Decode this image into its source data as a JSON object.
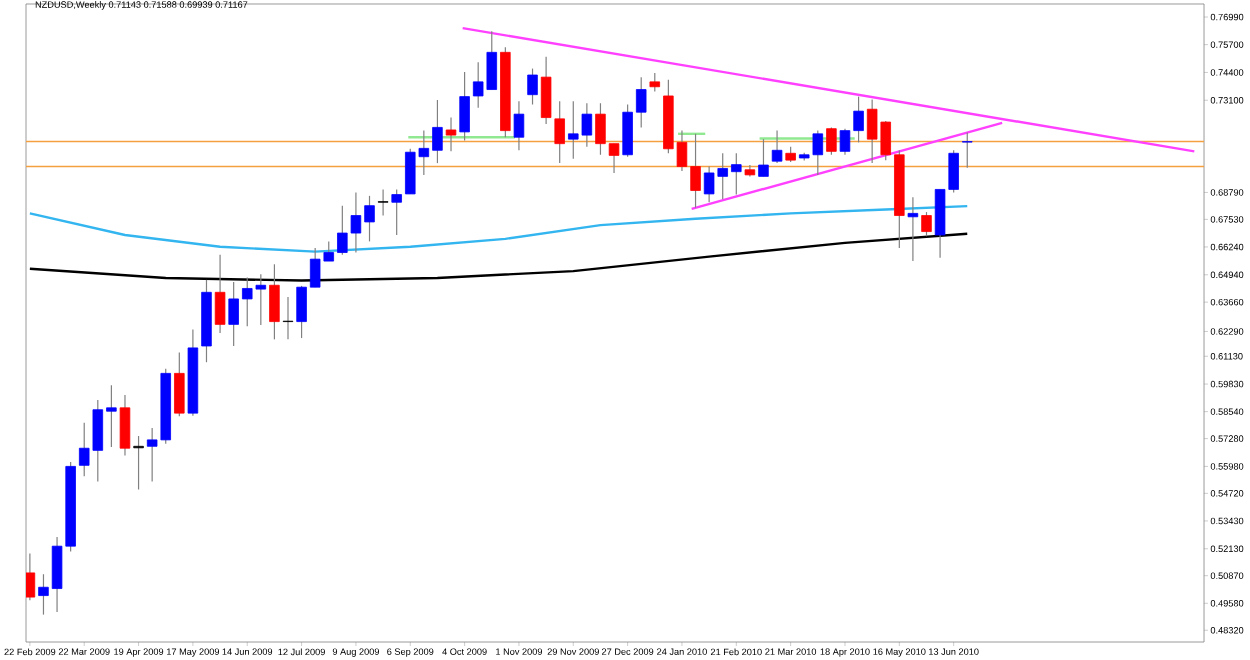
{
  "chart_data": {
    "type": "candlestick",
    "title": "NZDUSD,Weekly 0.71143 0.71588 0.69939 0.71167",
    "x": [
      "2009-02-22",
      "2009-03-01",
      "2009-03-08",
      "2009-03-15",
      "2009-03-22",
      "2009-03-29",
      "2009-04-05",
      "2009-04-12",
      "2009-04-19",
      "2009-04-26",
      "2009-05-03",
      "2009-05-10",
      "2009-05-17",
      "2009-05-24",
      "2009-05-31",
      "2009-06-07",
      "2009-06-14",
      "2009-06-21",
      "2009-06-28",
      "2009-07-05",
      "2009-07-12",
      "2009-07-19",
      "2009-07-26",
      "2009-08-02",
      "2009-08-09",
      "2009-08-16",
      "2009-08-23",
      "2009-08-30",
      "2009-09-06",
      "2009-09-13",
      "2009-09-20",
      "2009-09-27",
      "2009-10-04",
      "2009-10-11",
      "2009-10-18",
      "2009-10-25",
      "2009-11-01",
      "2009-11-08",
      "2009-11-15",
      "2009-11-22",
      "2009-11-29",
      "2009-12-06",
      "2009-12-13",
      "2009-12-20",
      "2009-12-27",
      "2010-01-03",
      "2010-01-10",
      "2010-01-17",
      "2010-01-24",
      "2010-01-31",
      "2010-02-07",
      "2010-02-14",
      "2010-02-21",
      "2010-02-28",
      "2010-03-07",
      "2010-03-14",
      "2010-03-21",
      "2010-03-28",
      "2010-04-04",
      "2010-04-11",
      "2010-04-18",
      "2010-04-25",
      "2010-05-02",
      "2010-05-09",
      "2010-05-16",
      "2010-05-23",
      "2010-05-30",
      "2010-06-06",
      "2010-06-13",
      "2010-06-20"
    ],
    "ohlc": [
      [
        0.51,
        0.5191,
        0.4972,
        0.4987
      ],
      [
        0.4994,
        0.5094,
        0.4905,
        0.5033
      ],
      [
        0.5027,
        0.5268,
        0.4917,
        0.5225
      ],
      [
        0.5225,
        0.5619,
        0.52,
        0.5598
      ],
      [
        0.5603,
        0.5802,
        0.5552,
        0.5683
      ],
      [
        0.5673,
        0.5909,
        0.5527,
        0.5863
      ],
      [
        0.5856,
        0.5978,
        0.5689,
        0.5872
      ],
      [
        0.5872,
        0.5932,
        0.5649,
        0.5683
      ],
      [
        0.5692,
        0.574,
        0.549,
        0.5685
      ],
      [
        0.5692,
        0.5777,
        0.5527,
        0.5722
      ],
      [
        0.5722,
        0.6055,
        0.5704,
        0.6033
      ],
      [
        0.6033,
        0.6131,
        0.5832,
        0.5847
      ],
      [
        0.5847,
        0.6238,
        0.5835,
        0.6152
      ],
      [
        0.6161,
        0.647,
        0.6085,
        0.6412
      ],
      [
        0.6412,
        0.6588,
        0.6222,
        0.6262
      ],
      [
        0.6262,
        0.646,
        0.6161,
        0.6381
      ],
      [
        0.6381,
        0.6481,
        0.6253,
        0.643
      ],
      [
        0.6427,
        0.6497,
        0.6259,
        0.6445
      ],
      [
        0.6445,
        0.6543,
        0.6192,
        0.6275
      ],
      [
        0.6277,
        0.639,
        0.6192,
        0.6275
      ],
      [
        0.6275,
        0.6442,
        0.6198,
        0.6436
      ],
      [
        0.6436,
        0.6619,
        0.6436,
        0.6567
      ],
      [
        0.6558,
        0.665,
        0.6558,
        0.6598
      ],
      [
        0.6598,
        0.6817,
        0.6588,
        0.6689
      ],
      [
        0.6689,
        0.6879,
        0.6598,
        0.6771
      ],
      [
        0.6741,
        0.6863,
        0.665,
        0.6817
      ],
      [
        0.6833,
        0.6893,
        0.6771,
        0.6836
      ],
      [
        0.6833,
        0.6893,
        0.668,
        0.6869
      ],
      [
        0.6872,
        0.7083,
        0.6872,
        0.7067
      ],
      [
        0.7046,
        0.7168,
        0.6961,
        0.7085
      ],
      [
        0.7076,
        0.7311,
        0.7016,
        0.7183
      ],
      [
        0.7171,
        0.7229,
        0.7071,
        0.7147
      ],
      [
        0.7162,
        0.7442,
        0.7122,
        0.7327
      ],
      [
        0.733,
        0.7488,
        0.7275,
        0.7396
      ],
      [
        0.736,
        0.7632,
        0.736,
        0.7534
      ],
      [
        0.7534,
        0.7558,
        0.7137,
        0.7168
      ],
      [
        0.7137,
        0.7305,
        0.7076,
        0.7245
      ],
      [
        0.7336,
        0.7458,
        0.729,
        0.7428
      ],
      [
        0.7418,
        0.7513,
        0.7199,
        0.7229
      ],
      [
        0.7223,
        0.7305,
        0.7016,
        0.7107
      ],
      [
        0.7128,
        0.7305,
        0.7037,
        0.7153
      ],
      [
        0.7147,
        0.7296,
        0.7092,
        0.7245
      ],
      [
        0.7245,
        0.7296,
        0.7055,
        0.7107
      ],
      [
        0.7107,
        0.7107,
        0.697,
        0.7052
      ],
      [
        0.7055,
        0.729,
        0.7046,
        0.7254
      ],
      [
        0.7254,
        0.7418,
        0.7183,
        0.736
      ],
      [
        0.7396,
        0.7437,
        0.7351,
        0.7373
      ],
      [
        0.733,
        0.7406,
        0.7062,
        0.7083
      ],
      [
        0.7113,
        0.7168,
        0.6979,
        0.7
      ],
      [
        0.7,
        0.7153,
        0.6808,
        0.6888
      ],
      [
        0.6872,
        0.7,
        0.6833,
        0.697
      ],
      [
        0.6954,
        0.7062,
        0.6847,
        0.6991
      ],
      [
        0.6976,
        0.7062,
        0.6869,
        0.7009
      ],
      [
        0.6985,
        0.7007,
        0.6954,
        0.6961
      ],
      [
        0.6954,
        0.7128,
        0.6954,
        0.7007
      ],
      [
        0.7025,
        0.7168,
        0.7016,
        0.7076
      ],
      [
        0.7062,
        0.7092,
        0.7021,
        0.703
      ],
      [
        0.704,
        0.7064,
        0.7028,
        0.7055
      ],
      [
        0.7055,
        0.7168,
        0.6961,
        0.7153
      ],
      [
        0.7177,
        0.7183,
        0.7055,
        0.7071
      ],
      [
        0.7071,
        0.7177,
        0.7055,
        0.7168
      ],
      [
        0.7168,
        0.7327,
        0.7113,
        0.7259
      ],
      [
        0.7268,
        0.7314,
        0.7016,
        0.7128
      ],
      [
        0.7208,
        0.7213,
        0.703,
        0.7055
      ],
      [
        0.7055,
        0.7076,
        0.6619,
        0.6771
      ],
      [
        0.6765,
        0.6857,
        0.6558,
        0.6781
      ],
      [
        0.6771,
        0.6787,
        0.6674,
        0.6696
      ],
      [
        0.668,
        0.6893,
        0.6573,
        0.6893
      ],
      [
        0.6893,
        0.7076,
        0.6879,
        0.7062
      ],
      [
        0.71143,
        0.71588,
        0.69939,
        0.71167
      ]
    ],
    "colors": [
      "#ff0000",
      "#0000ff",
      "#0000ff",
      "#0000ff",
      "#0000ff",
      "#0000ff",
      "#0000ff",
      "#ff0000",
      "#000000",
      "#0000ff",
      "#0000ff",
      "#ff0000",
      "#0000ff",
      "#0000ff",
      "#ff0000",
      "#0000ff",
      "#0000ff",
      "#0000ff",
      "#ff0000",
      "#000000",
      "#0000ff",
      "#0000ff",
      "#0000ff",
      "#0000ff",
      "#0000ff",
      "#0000ff",
      "#000000",
      "#0000ff",
      "#0000ff",
      "#0000ff",
      "#0000ff",
      "#ff0000",
      "#0000ff",
      "#0000ff",
      "#0000ff",
      "#ff0000",
      "#0000ff",
      "#0000ff",
      "#ff0000",
      "#ff0000",
      "#0000ff",
      "#0000ff",
      "#ff0000",
      "#ff0000",
      "#0000ff",
      "#0000ff",
      "#ff0000",
      "#ff0000",
      "#ff0000",
      "#ff0000",
      "#0000ff",
      "#0000ff",
      "#0000ff",
      "#ff0000",
      "#0000ff",
      "#0000ff",
      "#ff0000",
      "#0000ff",
      "#0000ff",
      "#ff0000",
      "#0000ff",
      "#0000ff",
      "#ff0000",
      "#ff0000",
      "#ff0000",
      "#0000ff",
      "#ff0000",
      "#0000ff",
      "#0000ff",
      "#0000ff"
    ],
    "xlim": [
      "2009-02-20",
      "2010-10-20"
    ],
    "xticks": [
      {
        "value": "2009-02-22",
        "label": "22 Feb 2009"
      },
      {
        "value": "2009-03-22",
        "label": "22 Mar 2009"
      },
      {
        "value": "2009-04-19",
        "label": "19 Apr 2009"
      },
      {
        "value": "2009-05-17",
        "label": "17 May 2009"
      },
      {
        "value": "2009-06-14",
        "label": "14 Jun 2009"
      },
      {
        "value": "2009-07-12",
        "label": "12 Jul 2009"
      },
      {
        "value": "2009-08-09",
        "label": "9 Aug 2009"
      },
      {
        "value": "2009-09-06",
        "label": "6 Sep 2009"
      },
      {
        "value": "2009-10-04",
        "label": "4 Oct 2009"
      },
      {
        "value": "2009-11-01",
        "label": "1 Nov 2009"
      },
      {
        "value": "2009-11-29",
        "label": "29 Nov 2009"
      },
      {
        "value": "2009-12-27",
        "label": "27 Dec 2009"
      },
      {
        "value": "2010-01-24",
        "label": "24 Jan 2010"
      },
      {
        "value": "2010-02-21",
        "label": "21 Feb 2010"
      },
      {
        "value": "2010-03-21",
        "label": "21 Mar 2010"
      },
      {
        "value": "2010-04-18",
        "label": "18 Apr 2010"
      },
      {
        "value": "2010-05-16",
        "label": "16 May 2010"
      },
      {
        "value": "2010-06-13",
        "label": "13 Jun 2010"
      }
    ],
    "ylim": [
      0.4777,
      0.776
    ],
    "yticks": [
      {
        "value": 0.7699,
        "label": "0.76990"
      },
      {
        "value": 0.757,
        "label": "0.75700"
      },
      {
        "value": 0.744,
        "label": "0.74400"
      },
      {
        "value": 0.731,
        "label": "0.73100"
      },
      {
        "value": 0.6879,
        "label": "0.68790"
      },
      {
        "value": 0.6753,
        "label": "0.67530"
      },
      {
        "value": 0.6624,
        "label": "0.66240"
      },
      {
        "value": 0.6494,
        "label": "0.64940"
      },
      {
        "value": 0.6366,
        "label": "0.63660"
      },
      {
        "value": 0.6229,
        "label": "0.62290"
      },
      {
        "value": 0.6113,
        "label": "0.61130"
      },
      {
        "value": 0.5983,
        "label": "0.59830"
      },
      {
        "value": 0.5854,
        "label": "0.58540"
      },
      {
        "value": 0.5728,
        "label": "0.57280"
      },
      {
        "value": 0.5598,
        "label": "0.55980"
      },
      {
        "value": 0.5472,
        "label": "0.54720"
      },
      {
        "value": 0.5343,
        "label": "0.53430"
      },
      {
        "value": 0.5213,
        "label": "0.52130"
      },
      {
        "value": 0.5087,
        "label": "0.50870"
      },
      {
        "value": 0.4958,
        "label": "0.49580"
      },
      {
        "value": 0.4832,
        "label": "0.48320"
      }
    ],
    "series": [
      {
        "type": "line",
        "color": "#33b5f0",
        "x": [
          "2009-02-22",
          "2009-04-12",
          "2009-05-31",
          "2009-07-19",
          "2009-09-06",
          "2009-10-25",
          "2009-12-13",
          "2010-01-31",
          "2010-03-21",
          "2010-05-09",
          "2010-06-20"
        ],
        "values": [
          0.6781,
          0.668,
          0.6625,
          0.6602,
          0.6625,
          0.6662,
          0.6726,
          0.6756,
          0.6781,
          0.6799,
          0.6815
        ]
      },
      {
        "type": "line",
        "color": "#000000",
        "x": [
          "2009-02-22",
          "2009-05-03",
          "2009-07-12",
          "2009-09-20",
          "2009-11-29",
          "2010-02-07",
          "2010-04-18",
          "2010-06-20"
        ],
        "values": [
          0.6522,
          0.6479,
          0.6467,
          0.6479,
          0.6511,
          0.6579,
          0.6643,
          0.6686
        ]
      },
      {
        "type": "line",
        "color": "#ff40ff",
        "x": [
          "2009-10-03",
          "2010-10-15"
        ],
        "values": [
          0.7647,
          0.7071
        ]
      },
      {
        "type": "line",
        "color": "#ff40ff",
        "x": [
          "2010-01-29",
          "2010-07-08"
        ],
        "values": [
          0.6802,
          0.7204
        ]
      },
      {
        "type": "line",
        "color": "#90e890",
        "x": [
          "2009-09-05",
          "2009-10-30"
        ],
        "values": [
          0.7137,
          0.7137
        ]
      },
      {
        "type": "line",
        "color": "#90e890",
        "x": [
          "2010-01-22",
          "2010-02-05"
        ],
        "values": [
          0.7153,
          0.7153
        ]
      },
      {
        "type": "line",
        "color": "#90e890",
        "x": [
          "2010-03-05",
          "2010-04-23"
        ],
        "values": [
          0.7131,
          0.7131
        ]
      }
    ],
    "ref_lines": [
      {
        "axis": "y",
        "value": 0.7117,
        "color": "#f5a040"
      },
      {
        "axis": "y",
        "value": 0.7,
        "color": "#f5a040"
      }
    ]
  }
}
